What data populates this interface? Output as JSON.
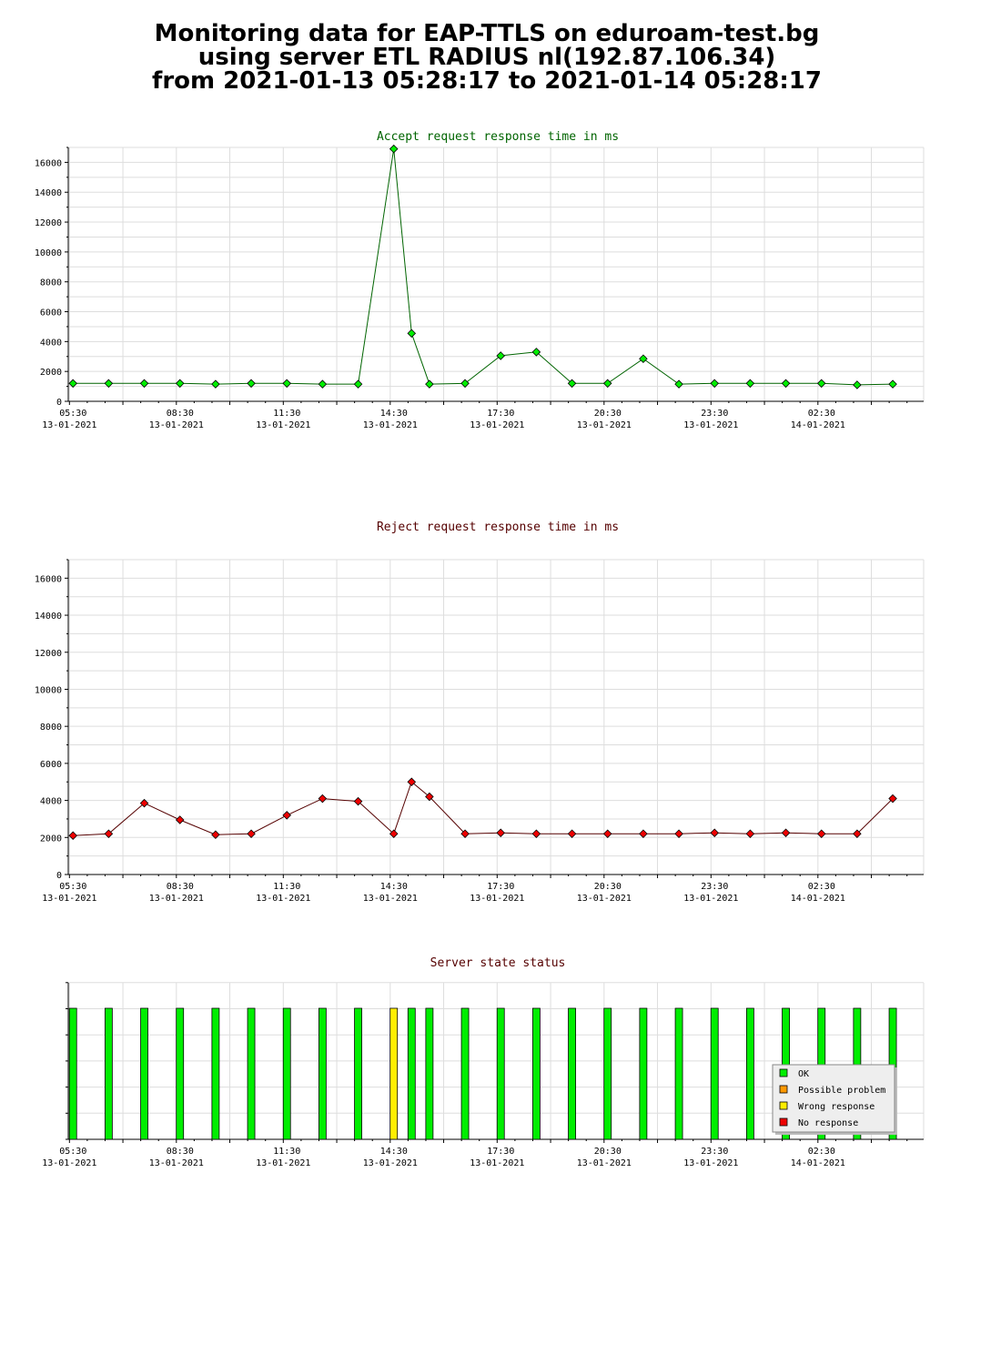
{
  "header": {
    "line1": "Monitoring data for EAP-TTLS on eduroam-test.bg",
    "line2": "using server ETL RADIUS nl(192.87.106.34)",
    "line3": "from 2021-01-13 05:28:17 to 2021-01-14 05:28:17"
  },
  "colors": {
    "accept_line": "#006400",
    "accept_marker": "#00ee00",
    "reject_line": "#550000",
    "reject_marker": "#ee0000",
    "ok": "#00ee00",
    "possible_problem": "#ff9900",
    "wrong_response": "#ffee00",
    "no_response": "#ee0000",
    "grid": "#dddddd"
  },
  "x_axis": {
    "ticks": [
      {
        "time": "05:30",
        "date": "13-01-2021"
      },
      {
        "time": "08:30",
        "date": "13-01-2021"
      },
      {
        "time": "11:30",
        "date": "13-01-2021"
      },
      {
        "time": "14:30",
        "date": "13-01-2021"
      },
      {
        "time": "17:30",
        "date": "13-01-2021"
      },
      {
        "time": "20:30",
        "date": "13-01-2021"
      },
      {
        "time": "23:30",
        "date": "13-01-2021"
      },
      {
        "time": "02:30",
        "date": "14-01-2021"
      }
    ]
  },
  "chart_data": [
    {
      "type": "line",
      "title": "Accept request response time in ms",
      "xlabel": "",
      "ylabel": "",
      "xlim": [
        "2021-01-13 05:28",
        "2021-01-14 05:28"
      ],
      "ylim": [
        0,
        17000
      ],
      "yticks": [
        0,
        2000,
        4000,
        6000,
        8000,
        10000,
        12000,
        14000,
        16000
      ],
      "grid": true,
      "series": [
        {
          "x": [
            "2021-01-13 05:36",
            "2021-01-13 06:36",
            "2021-01-13 07:36",
            "2021-01-13 08:36",
            "2021-01-13 09:36",
            "2021-01-13 10:36",
            "2021-01-13 11:36",
            "2021-01-13 12:36",
            "2021-01-13 13:36",
            "2021-01-13 14:36",
            "2021-01-13 15:06",
            "2021-01-13 15:36",
            "2021-01-13 16:36",
            "2021-01-13 17:36",
            "2021-01-13 18:36",
            "2021-01-13 19:36",
            "2021-01-13 20:36",
            "2021-01-13 21:36",
            "2021-01-13 22:36",
            "2021-01-13 23:36",
            "2021-01-14 00:36",
            "2021-01-14 01:36",
            "2021-01-14 02:36",
            "2021-01-14 03:36",
            "2021-01-14 04:36"
          ],
          "y": [
            1200,
            1200,
            1200,
            1200,
            1150,
            1200,
            1200,
            1150,
            1150,
            16900,
            4550,
            1150,
            1200,
            3050,
            3300,
            1200,
            1200,
            2850,
            1150,
            1200,
            1200,
            1200,
            1200,
            1100,
            1150
          ]
        }
      ]
    },
    {
      "type": "line",
      "title": "Reject request response time in ms",
      "xlabel": "",
      "ylabel": "",
      "xlim": [
        "2021-01-13 05:28",
        "2021-01-14 05:28"
      ],
      "ylim": [
        0,
        17000
      ],
      "yticks": [
        0,
        2000,
        4000,
        6000,
        8000,
        10000,
        12000,
        14000,
        16000
      ],
      "grid": true,
      "series": [
        {
          "x": [
            "2021-01-13 05:36",
            "2021-01-13 06:36",
            "2021-01-13 07:36",
            "2021-01-13 08:36",
            "2021-01-13 09:36",
            "2021-01-13 10:36",
            "2021-01-13 11:36",
            "2021-01-13 12:36",
            "2021-01-13 13:36",
            "2021-01-13 14:36",
            "2021-01-13 15:06",
            "2021-01-13 15:36",
            "2021-01-13 16:36",
            "2021-01-13 17:36",
            "2021-01-13 18:36",
            "2021-01-13 19:36",
            "2021-01-13 20:36",
            "2021-01-13 21:36",
            "2021-01-13 22:36",
            "2021-01-13 23:36",
            "2021-01-14 00:36",
            "2021-01-14 01:36",
            "2021-01-14 02:36",
            "2021-01-14 03:36",
            "2021-01-14 04:36"
          ],
          "y": [
            2100,
            2200,
            3850,
            2950,
            2150,
            2200,
            3200,
            4100,
            3950,
            2200,
            5000,
            4200,
            2200,
            2250,
            2200,
            2200,
            2200,
            2200,
            2200,
            2250,
            2200,
            2250,
            2200,
            2200,
            4100
          ]
        }
      ]
    },
    {
      "type": "bar",
      "title": "Server state status",
      "xlim": [
        "2021-01-13 05:28",
        "2021-01-14 05:28"
      ],
      "grid": true,
      "legend": "right",
      "legend_entries": [
        "OK",
        "Possible problem",
        "Wrong response",
        "No response"
      ],
      "x": [
        "2021-01-13 05:36",
        "2021-01-13 06:36",
        "2021-01-13 07:36",
        "2021-01-13 08:36",
        "2021-01-13 09:36",
        "2021-01-13 10:36",
        "2021-01-13 11:36",
        "2021-01-13 12:36",
        "2021-01-13 13:36",
        "2021-01-13 14:36",
        "2021-01-13 15:06",
        "2021-01-13 15:36",
        "2021-01-13 16:36",
        "2021-01-13 17:36",
        "2021-01-13 18:36",
        "2021-01-13 19:36",
        "2021-01-13 20:36",
        "2021-01-13 21:36",
        "2021-01-13 22:36",
        "2021-01-13 23:36",
        "2021-01-14 00:36",
        "2021-01-14 01:36",
        "2021-01-14 02:36",
        "2021-01-14 03:36",
        "2021-01-14 04:36"
      ],
      "states": [
        "OK",
        "OK",
        "OK",
        "OK",
        "OK",
        "OK",
        "OK",
        "OK",
        "OK",
        "Wrong response",
        "OK",
        "OK",
        "OK",
        "OK",
        "OK",
        "OK",
        "OK",
        "OK",
        "OK",
        "OK",
        "OK",
        "OK",
        "OK",
        "OK",
        "OK"
      ]
    }
  ]
}
